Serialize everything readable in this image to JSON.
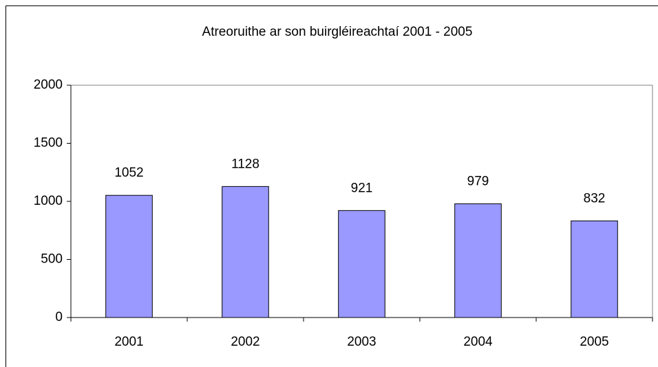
{
  "chart_data": {
    "type": "bar",
    "title": "Atreoruithe ar son buirgléireachtaí 2001 - 2005",
    "categories": [
      "2001",
      "2002",
      "2003",
      "2004",
      "2005"
    ],
    "values": [
      1052,
      1128,
      921,
      979,
      832
    ],
    "color": "#9999ff",
    "ylim": [
      0,
      2000
    ],
    "yticks": [
      0,
      500,
      1000,
      1500,
      2000
    ],
    "grid": false
  }
}
